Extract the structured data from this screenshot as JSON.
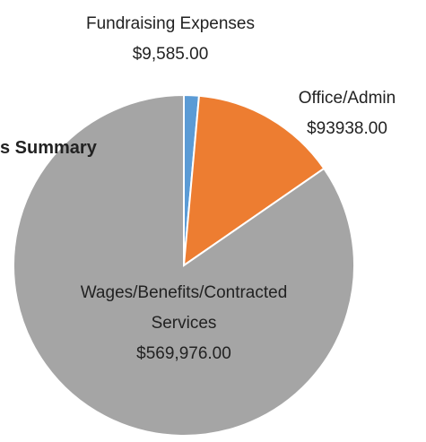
{
  "chart_data": {
    "type": "pie",
    "title": "s Summary",
    "categories": [
      "Fundraising Expenses",
      "Office/Admin",
      "Wages/Benefits/Contracted Services"
    ],
    "values": [
      9585,
      93938,
      569976
    ],
    "value_labels": [
      "$9,585.00",
      "$93938.00",
      "$569,976.00"
    ],
    "colors": [
      "#5b9bd5",
      "#ed7d31",
      "#a5a5a5"
    ]
  }
}
